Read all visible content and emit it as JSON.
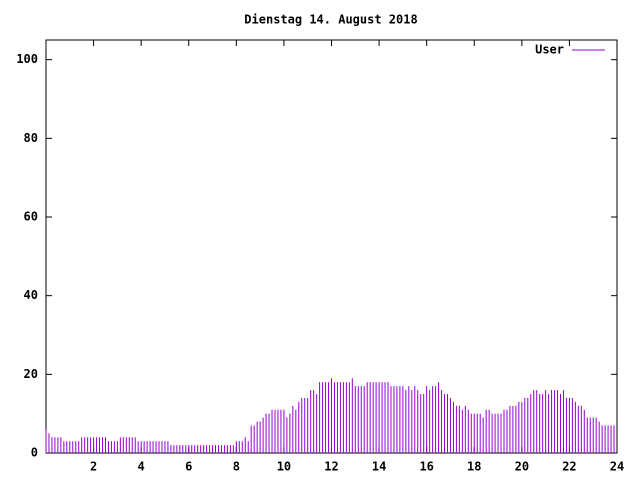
{
  "chart_data": {
    "type": "impulse",
    "title": "Dienstag 14. August 2018",
    "x": [
      0,
      0.125,
      0.25,
      0.375,
      0.5,
      0.625,
      0.75,
      0.875,
      1,
      1.125,
      1.25,
      1.375,
      1.5,
      1.625,
      1.75,
      1.875,
      2,
      2.125,
      2.25,
      2.375,
      2.5,
      2.625,
      2.75,
      2.875,
      3,
      3.125,
      3.25,
      3.375,
      3.5,
      3.625,
      3.75,
      3.875,
      4,
      4.125,
      4.25,
      4.375,
      4.5,
      4.625,
      4.75,
      4.875,
      5,
      5.125,
      5.25,
      5.375,
      5.5,
      5.625,
      5.75,
      5.875,
      6,
      6.125,
      6.25,
      6.375,
      6.5,
      6.625,
      6.75,
      6.875,
      7,
      7.125,
      7.25,
      7.375,
      7.5,
      7.625,
      7.75,
      7.875,
      8,
      8.125,
      8.25,
      8.375,
      8.5,
      8.625,
      8.75,
      8.875,
      9,
      9.125,
      9.25,
      9.375,
      9.5,
      9.625,
      9.75,
      9.875,
      10,
      10.125,
      10.25,
      10.375,
      10.5,
      10.625,
      10.75,
      10.875,
      11,
      11.125,
      11.25,
      11.375,
      11.5,
      11.625,
      11.75,
      11.875,
      12,
      12.125,
      12.25,
      12.375,
      12.5,
      12.625,
      12.75,
      12.875,
      13,
      13.125,
      13.25,
      13.375,
      13.5,
      13.625,
      13.75,
      13.875,
      14,
      14.125,
      14.25,
      14.375,
      14.5,
      14.625,
      14.75,
      14.875,
      15,
      15.125,
      15.25,
      15.375,
      15.5,
      15.625,
      15.75,
      15.875,
      16,
      16.125,
      16.25,
      16.375,
      16.5,
      16.625,
      16.75,
      16.875,
      17,
      17.125,
      17.25,
      17.375,
      17.5,
      17.625,
      17.75,
      17.875,
      18,
      18.125,
      18.25,
      18.375,
      18.5,
      18.625,
      18.75,
      18.875,
      19,
      19.125,
      19.25,
      19.375,
      19.5,
      19.625,
      19.75,
      19.875,
      20,
      20.125,
      20.25,
      20.375,
      20.5,
      20.625,
      20.75,
      20.875,
      21,
      21.125,
      21.25,
      21.375,
      21.5,
      21.625,
      21.75,
      21.875,
      22,
      22.125,
      22.25,
      22.375,
      22.5,
      22.625,
      22.75,
      22.875,
      23,
      23.125,
      23.25,
      23.375,
      23.5,
      23.625,
      23.75,
      23.875
    ],
    "series": [
      {
        "name": "User",
        "color": "#9400d3",
        "values": [
          6,
          5,
          4,
          4,
          4,
          4,
          3,
          3,
          3,
          3,
          3,
          3,
          4,
          4,
          4,
          4,
          4,
          4,
          4,
          4,
          4,
          3,
          3,
          3,
          3,
          4,
          4,
          4,
          4,
          4,
          4,
          3,
          3,
          3,
          3,
          3,
          3,
          3,
          3,
          3,
          3,
          3,
          2,
          2,
          2,
          2,
          2,
          2,
          2,
          2,
          2,
          2,
          2,
          2,
          2,
          2,
          2,
          2,
          2,
          2,
          2,
          2,
          2,
          2,
          3,
          3,
          3,
          4,
          3,
          7,
          7,
          8,
          8,
          9,
          10,
          10,
          11,
          11,
          11,
          11,
          11,
          9,
          10,
          12,
          11,
          13,
          14,
          14,
          14,
          16,
          16,
          15,
          18,
          18,
          18,
          18,
          19,
          18,
          18,
          18,
          18,
          18,
          18,
          19,
          17,
          17,
          17,
          17,
          18,
          18,
          18,
          18,
          18,
          18,
          18,
          18,
          17,
          17,
          17,
          17,
          17,
          16,
          17,
          16,
          17,
          16,
          15,
          15,
          17,
          16,
          17,
          17,
          18,
          16,
          15,
          15,
          14,
          13,
          12,
          12,
          11,
          12,
          11,
          10,
          10,
          10,
          10,
          9,
          11,
          11,
          10,
          10,
          10,
          10,
          11,
          11,
          12,
          12,
          12,
          13,
          13,
          14,
          14,
          15,
          16,
          16,
          15,
          15,
          16,
          15,
          16,
          16,
          16,
          15,
          16,
          14,
          14,
          14,
          13,
          12,
          12,
          11,
          9,
          9,
          9,
          9,
          8,
          7,
          7,
          7,
          7,
          7
        ]
      }
    ],
    "xlim": [
      0,
      24
    ],
    "xticks": [
      2,
      4,
      6,
      8,
      10,
      12,
      14,
      16,
      18,
      20,
      22,
      24
    ],
    "ylim": [
      0,
      105
    ],
    "yticks": [
      0,
      20,
      40,
      60,
      80,
      100
    ],
    "legend": "top-right"
  }
}
